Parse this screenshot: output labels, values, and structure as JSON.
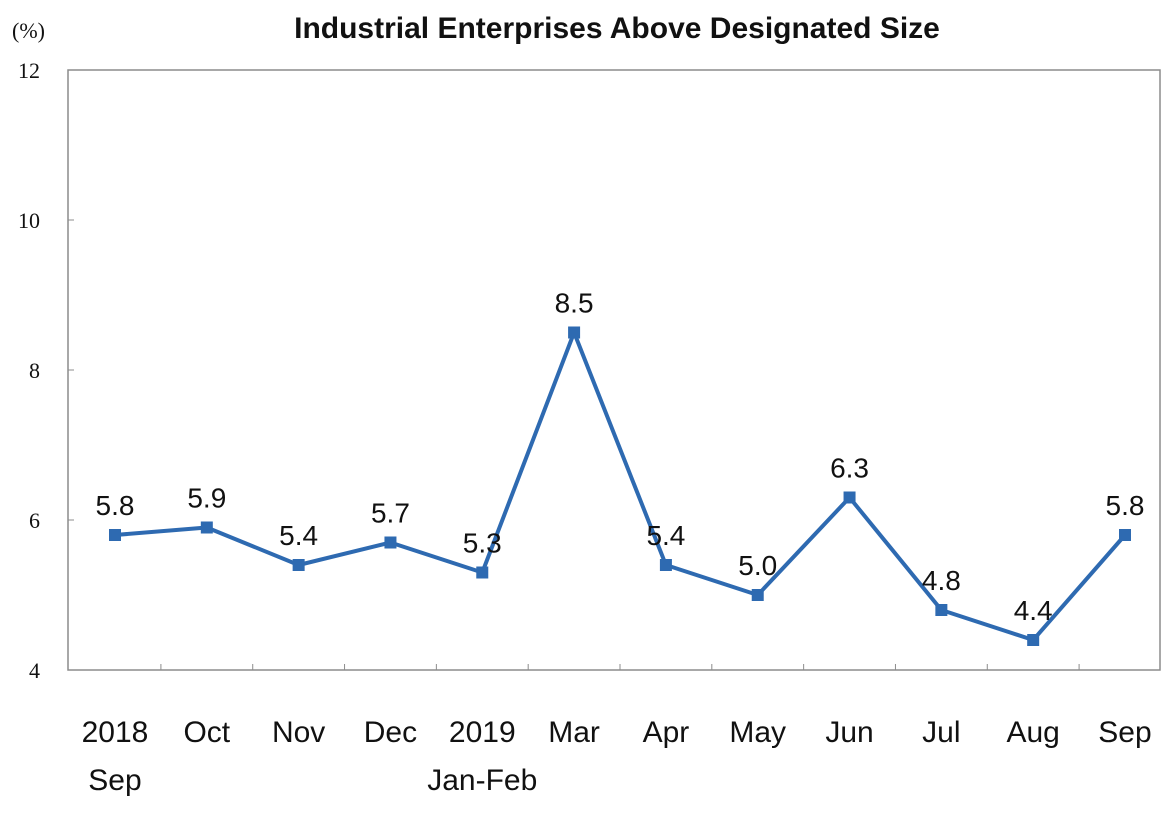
{
  "chart_data": {
    "type": "line",
    "title": "Industrial Enterprises Above Designated Size",
    "unit_label": "(%)",
    "categories": [
      [
        "2018",
        "Sep"
      ],
      [
        "Oct"
      ],
      [
        "Nov"
      ],
      [
        "Dec"
      ],
      [
        "2019",
        "Jan-Feb"
      ],
      [
        "Mar"
      ],
      [
        "Apr"
      ],
      [
        "May"
      ],
      [
        "Jun"
      ],
      [
        "Jul"
      ],
      [
        "Aug"
      ],
      [
        "Sep"
      ]
    ],
    "series": [
      {
        "values": [
          5.8,
          5.9,
          5.4,
          5.7,
          5.3,
          8.5,
          5.4,
          5.0,
          6.3,
          4.8,
          4.4,
          5.8
        ],
        "data_labels": [
          "5.8",
          "5.9",
          "5.4",
          "5.7",
          "5.3",
          "8.5",
          "5.4",
          "5.0",
          "6.3",
          "4.8",
          "4.4",
          "5.8"
        ],
        "color": "#2e6ab1"
      }
    ],
    "ylim": [
      4,
      12
    ],
    "yticks": [
      "12",
      "10",
      "8",
      "6",
      "4"
    ],
    "grid": false,
    "legend": "none"
  }
}
